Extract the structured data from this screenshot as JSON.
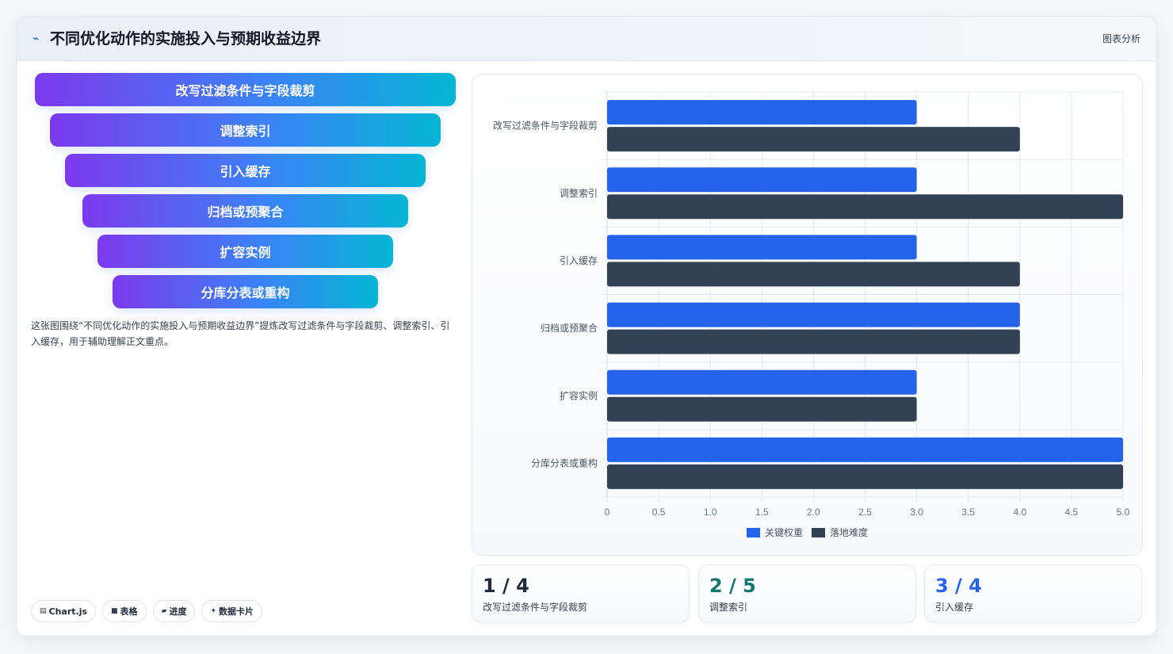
{
  "header": {
    "icon": "chart-line-icon",
    "title": "不同优化动作的实施投入与预期收益边界",
    "link": "图表分析"
  },
  "funnel": [
    {
      "label": "改写过滤条件与字段裁剪"
    },
    {
      "label": "调整索引"
    },
    {
      "label": "引入缓存"
    },
    {
      "label": "归档或预聚合"
    },
    {
      "label": "扩容实例"
    },
    {
      "label": "分库分表或重构"
    }
  ],
  "caption": "这张图围绕“不同优化动作的实施投入与预期收益边界”提炼改写过滤条件与字段裁剪、调整索引、引入缓存，用于辅助理解正文重点。",
  "tags": [
    {
      "icon": "▤",
      "label": "Chart.js"
    },
    {
      "icon": "■",
      "label": "表格"
    },
    {
      "icon": "▰",
      "label": "进度"
    },
    {
      "icon": "✦",
      "label": "数据卡片"
    }
  ],
  "colors": {
    "series1": "#2563eb",
    "series2": "#334155",
    "stat1": "#1e293b",
    "stat2": "#0f766e",
    "stat3": "#2563eb"
  },
  "chart_data": {
    "type": "bar",
    "orientation": "horizontal",
    "categories": [
      "改写过滤条件与字段裁剪",
      "调整索引",
      "引入缓存",
      "归档或预聚合",
      "扩容实例",
      "分库分表或重构"
    ],
    "series": [
      {
        "name": "关键权重",
        "color": "#2563eb",
        "values": [
          3,
          3,
          3,
          4,
          3,
          5
        ]
      },
      {
        "name": "落地难度",
        "color": "#334155",
        "values": [
          4,
          5,
          4,
          4,
          3,
          5
        ]
      }
    ],
    "xlim": [
      0,
      5
    ],
    "xticks": [
      "0",
      "0.5",
      "1.0",
      "1.5",
      "2.0",
      "2.5",
      "3.0",
      "3.5",
      "4.0",
      "4.5",
      "5.0"
    ],
    "grid": true,
    "legend": "bottom"
  },
  "stats": [
    {
      "value": "1 / 4",
      "label": "改写过滤条件与字段裁剪"
    },
    {
      "value": "2 / 5",
      "label": "调整索引"
    },
    {
      "value": "3 / 4",
      "label": "引入缓存"
    }
  ]
}
